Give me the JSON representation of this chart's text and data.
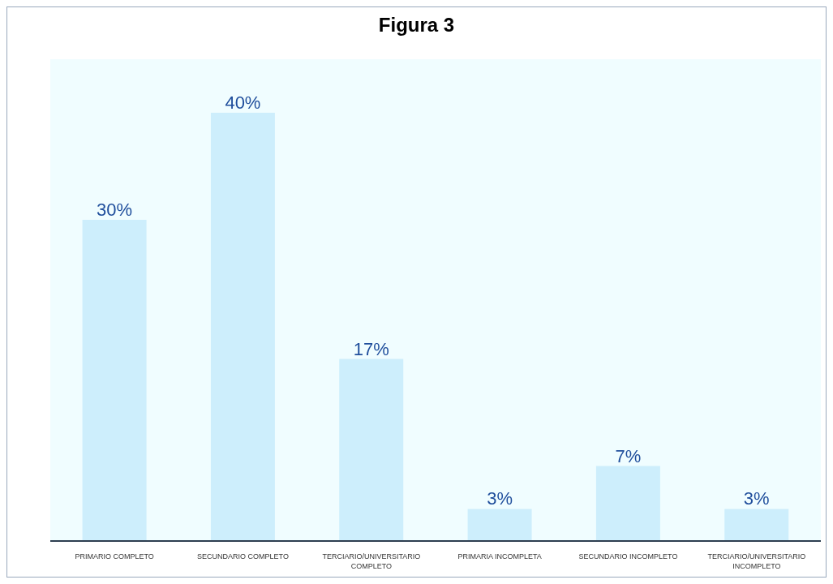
{
  "chart_data": {
    "type": "bar",
    "title": "Figura 3",
    "categories": [
      "PRIMARIO COMPLETO",
      "SECUNDARIO COMPLETO",
      "TERCIARIO/UNIVERSITARIO COMPLETO",
      "PRIMARIA INCOMPLETA",
      "SECUNDARIO INCOMPLETO",
      "TERCIARIO/UNIVERSITARIO INCOMPLETO"
    ],
    "values": [
      30,
      40,
      17,
      3,
      7,
      3
    ],
    "value_labels": [
      "30%",
      "40%",
      "17%",
      "3%",
      "7%",
      "3%"
    ],
    "color": "#cdeefc",
    "ylim": [
      0,
      45
    ]
  }
}
